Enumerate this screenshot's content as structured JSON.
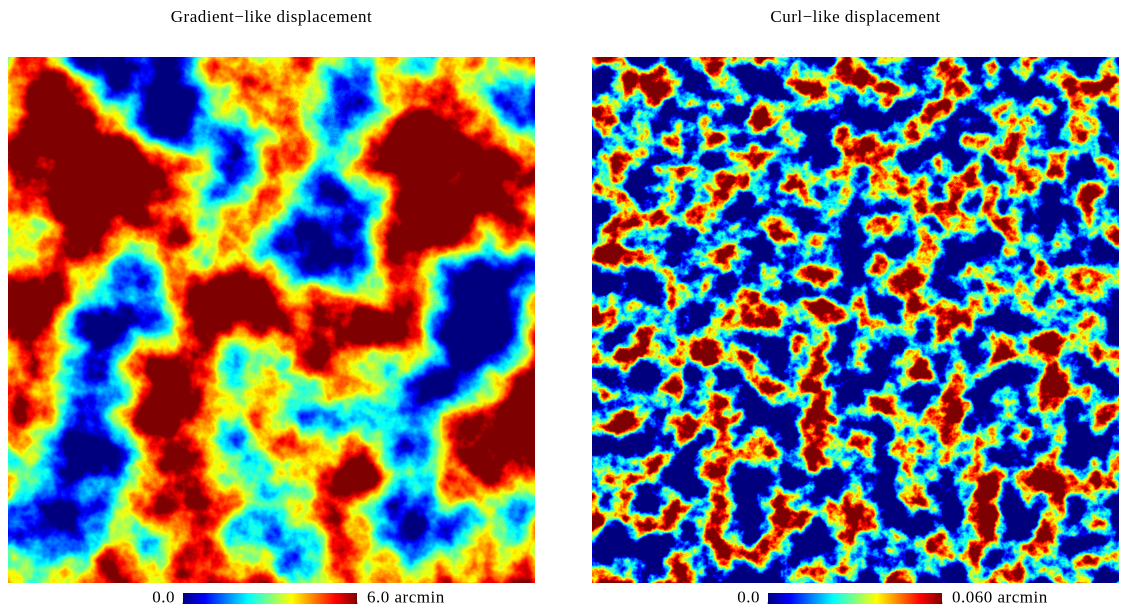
{
  "chart_data": [
    {
      "type": "heatmap",
      "title": "Gradient−like displacement",
      "colormap": "jet",
      "zlim": [
        0,
        6
      ],
      "colorbar_ticks": [
        {
          "value": 0,
          "label": "0.0"
        },
        {
          "value": 6,
          "label": "6.0 arcmin"
        }
      ]
    },
    {
      "type": "heatmap",
      "title": "Curl−like displacement",
      "colormap": "jet",
      "zlim": [
        0,
        0.06
      ],
      "colorbar_ticks": [
        {
          "value": 0,
          "label": "0.0"
        },
        {
          "value": 0.06,
          "label": "0.060 arcmin"
        }
      ]
    }
  ]
}
